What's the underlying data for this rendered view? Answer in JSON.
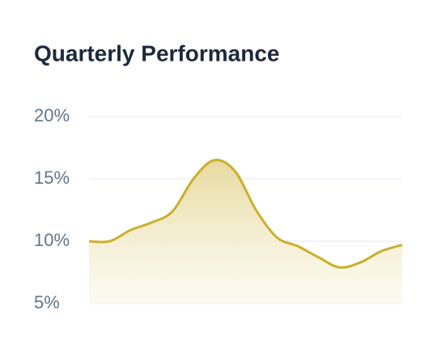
{
  "chart_data": {
    "type": "area",
    "title": "Quarterly Performance",
    "categories": [
      null,
      null,
      null,
      null,
      null,
      null,
      null,
      null,
      null,
      null,
      null,
      null,
      null,
      null,
      null,
      null
    ],
    "values": [
      10.0,
      10.0,
      10.9,
      11.5,
      12.4,
      15.0,
      16.5,
      15.6,
      12.5,
      10.3,
      9.6,
      8.7,
      7.9,
      8.3,
      9.2,
      9.7
    ],
    "color": "#c9b02c",
    "ylim": [
      5,
      20
    ],
    "yticks": [
      {
        "value": 5,
        "label": "5%"
      },
      {
        "value": 10,
        "label": "10%"
      },
      {
        "value": 15,
        "label": "15%"
      },
      {
        "value": 20,
        "label": "20%"
      }
    ],
    "grid": true
  }
}
